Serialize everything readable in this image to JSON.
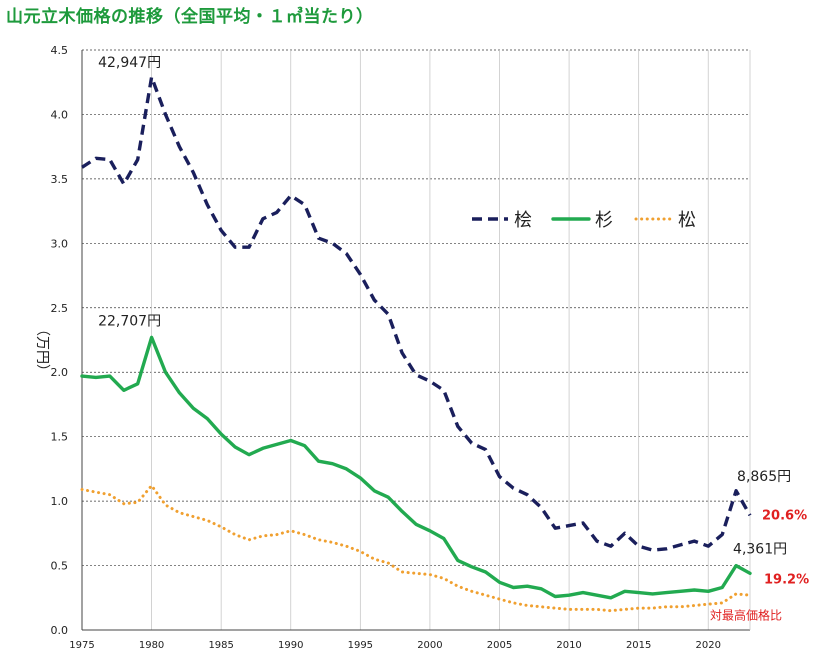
{
  "title": "山元立木価格の推移（全国平均・１㎥当たり）",
  "chart_data": {
    "type": "line",
    "ylabel": "（万円）",
    "ylim": [
      0,
      4.5
    ],
    "xlim": [
      1975,
      2023
    ],
    "y_ticks": [
      "0.0",
      "0.5",
      "1.0",
      "1.5",
      "2.0",
      "2.5",
      "3.0",
      "3.5",
      "4.0",
      "4.5"
    ],
    "x_ticks": [
      "1975",
      "1980",
      "1985",
      "1990",
      "1995",
      "2000",
      "2005",
      "2010",
      "2015",
      "2020"
    ],
    "grid": true,
    "legend_position": "upper-right",
    "series": [
      {
        "name": "桧",
        "style": "dashed",
        "color": "#1a1f5c",
        "points": [
          [
            1975,
            3.59
          ],
          [
            1976,
            3.66
          ],
          [
            1977,
            3.65
          ],
          [
            1978,
            3.46
          ],
          [
            1979,
            3.65
          ],
          [
            1980,
            4.29
          ],
          [
            1981,
            4.0
          ],
          [
            1982,
            3.75
          ],
          [
            1983,
            3.55
          ],
          [
            1984,
            3.3
          ],
          [
            1985,
            3.1
          ],
          [
            1986,
            2.97
          ],
          [
            1987,
            2.97
          ],
          [
            1988,
            3.19
          ],
          [
            1989,
            3.24
          ],
          [
            1990,
            3.37
          ],
          [
            1991,
            3.3
          ],
          [
            1992,
            3.04
          ],
          [
            1993,
            3.0
          ],
          [
            1994,
            2.92
          ],
          [
            1995,
            2.76
          ],
          [
            1996,
            2.56
          ],
          [
            1997,
            2.45
          ],
          [
            1998,
            2.15
          ],
          [
            1999,
            1.98
          ],
          [
            2000,
            1.93
          ],
          [
            2001,
            1.86
          ],
          [
            2002,
            1.58
          ],
          [
            2003,
            1.45
          ],
          [
            2004,
            1.4
          ],
          [
            2005,
            1.19
          ],
          [
            2006,
            1.1
          ],
          [
            2007,
            1.05
          ],
          [
            2008,
            0.95
          ],
          [
            2009,
            0.79
          ],
          [
            2010,
            0.81
          ],
          [
            2011,
            0.83
          ],
          [
            2012,
            0.69
          ],
          [
            2013,
            0.65
          ],
          [
            2014,
            0.75
          ],
          [
            2015,
            0.65
          ],
          [
            2016,
            0.62
          ],
          [
            2017,
            0.63
          ],
          [
            2018,
            0.66
          ],
          [
            2019,
            0.69
          ],
          [
            2020,
            0.65
          ],
          [
            2021,
            0.74
          ],
          [
            2022,
            1.08
          ],
          [
            2023,
            0.89
          ]
        ]
      },
      {
        "name": "杉",
        "style": "solid",
        "color": "#22aa50",
        "points": [
          [
            1975,
            1.97
          ],
          [
            1976,
            1.96
          ],
          [
            1977,
            1.97
          ],
          [
            1978,
            1.86
          ],
          [
            1979,
            1.91
          ],
          [
            1980,
            2.27
          ],
          [
            1981,
            2.0
          ],
          [
            1982,
            1.84
          ],
          [
            1983,
            1.72
          ],
          [
            1984,
            1.64
          ],
          [
            1985,
            1.52
          ],
          [
            1986,
            1.42
          ],
          [
            1987,
            1.36
          ],
          [
            1988,
            1.41
          ],
          [
            1989,
            1.44
          ],
          [
            1990,
            1.47
          ],
          [
            1991,
            1.43
          ],
          [
            1992,
            1.31
          ],
          [
            1993,
            1.29
          ],
          [
            1994,
            1.25
          ],
          [
            1995,
            1.18
          ],
          [
            1996,
            1.08
          ],
          [
            1997,
            1.03
          ],
          [
            1998,
            0.92
          ],
          [
            1999,
            0.82
          ],
          [
            2000,
            0.77
          ],
          [
            2001,
            0.71
          ],
          [
            2002,
            0.54
          ],
          [
            2003,
            0.49
          ],
          [
            2004,
            0.45
          ],
          [
            2005,
            0.37
          ],
          [
            2006,
            0.33
          ],
          [
            2007,
            0.34
          ],
          [
            2008,
            0.32
          ],
          [
            2009,
            0.26
          ],
          [
            2010,
            0.27
          ],
          [
            2011,
            0.29
          ],
          [
            2012,
            0.27
          ],
          [
            2013,
            0.25
          ],
          [
            2014,
            0.3
          ],
          [
            2015,
            0.29
          ],
          [
            2016,
            0.28
          ],
          [
            2017,
            0.29
          ],
          [
            2018,
            0.3
          ],
          [
            2019,
            0.31
          ],
          [
            2020,
            0.3
          ],
          [
            2021,
            0.33
          ],
          [
            2022,
            0.5
          ],
          [
            2023,
            0.44
          ]
        ]
      },
      {
        "name": "松",
        "style": "dotted",
        "color": "#f0a030",
        "points": [
          [
            1975,
            1.09
          ],
          [
            1976,
            1.07
          ],
          [
            1977,
            1.05
          ],
          [
            1978,
            0.98
          ],
          [
            1979,
            0.99
          ],
          [
            1980,
            1.12
          ],
          [
            1981,
            0.97
          ],
          [
            1982,
            0.91
          ],
          [
            1983,
            0.88
          ],
          [
            1984,
            0.85
          ],
          [
            1985,
            0.8
          ],
          [
            1986,
            0.74
          ],
          [
            1987,
            0.7
          ],
          [
            1988,
            0.73
          ],
          [
            1989,
            0.74
          ],
          [
            1990,
            0.77
          ],
          [
            1991,
            0.74
          ],
          [
            1992,
            0.7
          ],
          [
            1993,
            0.68
          ],
          [
            1994,
            0.65
          ],
          [
            1995,
            0.61
          ],
          [
            1996,
            0.55
          ],
          [
            1997,
            0.52
          ],
          [
            1998,
            0.45
          ],
          [
            1999,
            0.44
          ],
          [
            2000,
            0.43
          ],
          [
            2001,
            0.4
          ],
          [
            2002,
            0.34
          ],
          [
            2003,
            0.3
          ],
          [
            2004,
            0.27
          ],
          [
            2005,
            0.24
          ],
          [
            2006,
            0.21
          ],
          [
            2007,
            0.19
          ],
          [
            2008,
            0.18
          ],
          [
            2009,
            0.17
          ],
          [
            2010,
            0.16
          ],
          [
            2011,
            0.16
          ],
          [
            2012,
            0.16
          ],
          [
            2013,
            0.15
          ],
          [
            2014,
            0.16
          ],
          [
            2015,
            0.17
          ],
          [
            2016,
            0.17
          ],
          [
            2017,
            0.18
          ],
          [
            2018,
            0.18
          ],
          [
            2019,
            0.19
          ],
          [
            2020,
            0.2
          ],
          [
            2021,
            0.21
          ],
          [
            2022,
            0.28
          ],
          [
            2023,
            0.27
          ]
        ]
      }
    ],
    "annotations": [
      {
        "text": "42,947円",
        "x": 1980,
        "y": 4.29,
        "role": "peak-hinoki"
      },
      {
        "text": "22,707円",
        "x": 1980,
        "y": 2.27,
        "role": "peak-sugi"
      },
      {
        "text": "8,865円",
        "x": 2022,
        "y": 1.08,
        "role": "latest-hinoki"
      },
      {
        "text": "4,361円",
        "x": 2022,
        "y": 0.5,
        "role": "latest-sugi"
      },
      {
        "text": "20.6%",
        "x": 2023,
        "y": 0.89,
        "role": "ratio-hinoki",
        "color": "#e02020"
      },
      {
        "text": "19.2%",
        "x": 2023,
        "y": 0.44,
        "role": "ratio-sugi",
        "color": "#e02020"
      },
      {
        "text": "対最高価格比",
        "x": 2023,
        "y": 0.08,
        "role": "ratio-note",
        "color": "#e02020"
      }
    ]
  }
}
